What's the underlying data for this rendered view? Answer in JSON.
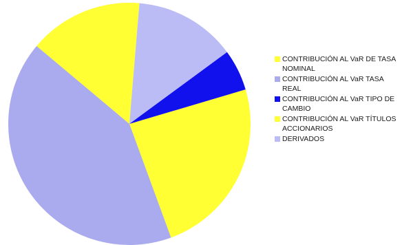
{
  "chart_data": {
    "type": "pie",
    "title": "",
    "slices": [
      {
        "label": "CONTRIBUCIÓN AL VaR DE TASA NOMINAL",
        "value": 24.0,
        "color": "#ffff33"
      },
      {
        "label": "CONTRIBUCIÓN AL VaR TASA REAL",
        "value": 41.7,
        "color": "#aaaaee"
      },
      {
        "label": "CONTRIBUCIÓN AL VaR TIPO DE CAMBIO",
        "value": 0,
        "color": "#1111ee"
      },
      {
        "label": "CONTRIBUCIÓN AL VaR TÍTULOS ACCIONARIOS",
        "value": 15.2,
        "color": "#ffff33"
      },
      {
        "label": "DERIVADOS",
        "value": 13.6,
        "color": "#bbbbf5"
      },
      {
        "label": "",
        "value": 5.5,
        "color": "#1111ee"
      }
    ],
    "legend": [
      {
        "label": "CONTRIBUCIÓN AL VaR DE TASA NOMINAL",
        "color": "#ffff33"
      },
      {
        "label": "CONTRIBUCIÓN AL VaR TASA REAL",
        "color": "#aaaaee"
      },
      {
        "label": "CONTRIBUCIÓN AL VaR TIPO DE CAMBIO",
        "color": "#1111ee"
      },
      {
        "label": "CONTRIBUCIÓN AL VaR TÍTULOS ACCIONARIOS",
        "color": "#ffff33"
      },
      {
        "label": "DERIVADOS",
        "color": "#bbbbf5"
      }
    ],
    "start_angle_deg": -16.5,
    "legend_position": "right"
  }
}
